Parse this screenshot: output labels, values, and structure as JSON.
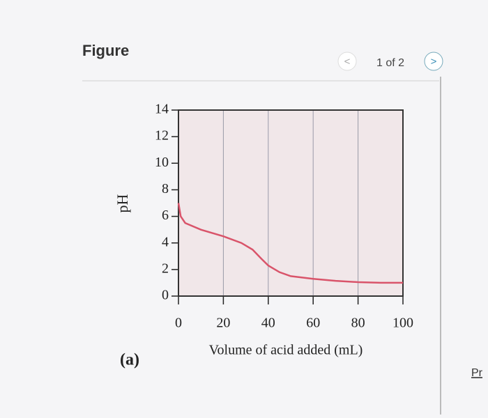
{
  "header": {
    "title": "Figure",
    "pager": "1 of 2",
    "prev": "<",
    "next": ">"
  },
  "panel_label": "(a)",
  "side_link": "Pr",
  "chart_data": {
    "type": "line",
    "x_label": "Volume of acid added (mL)",
    "y_label": "pH",
    "x": [
      0,
      1,
      3,
      10,
      20,
      28,
      33,
      37,
      40,
      45,
      50,
      60,
      70,
      80,
      90,
      100
    ],
    "series": [
      {
        "color": "#d9546a",
        "values": [
          7,
          6,
          5.5,
          5.0,
          4.5,
          4.0,
          3.5,
          2.8,
          2.3,
          1.8,
          1.5,
          1.3,
          1.15,
          1.05,
          1.0,
          1.0
        ]
      }
    ],
    "xlim": [
      0,
      100
    ],
    "xticks": [
      0,
      20,
      40,
      60,
      80,
      100
    ],
    "ylim": [
      0,
      14
    ],
    "yticks": [
      0,
      2,
      4,
      6,
      8,
      10,
      12,
      14
    ],
    "grid": "x"
  }
}
